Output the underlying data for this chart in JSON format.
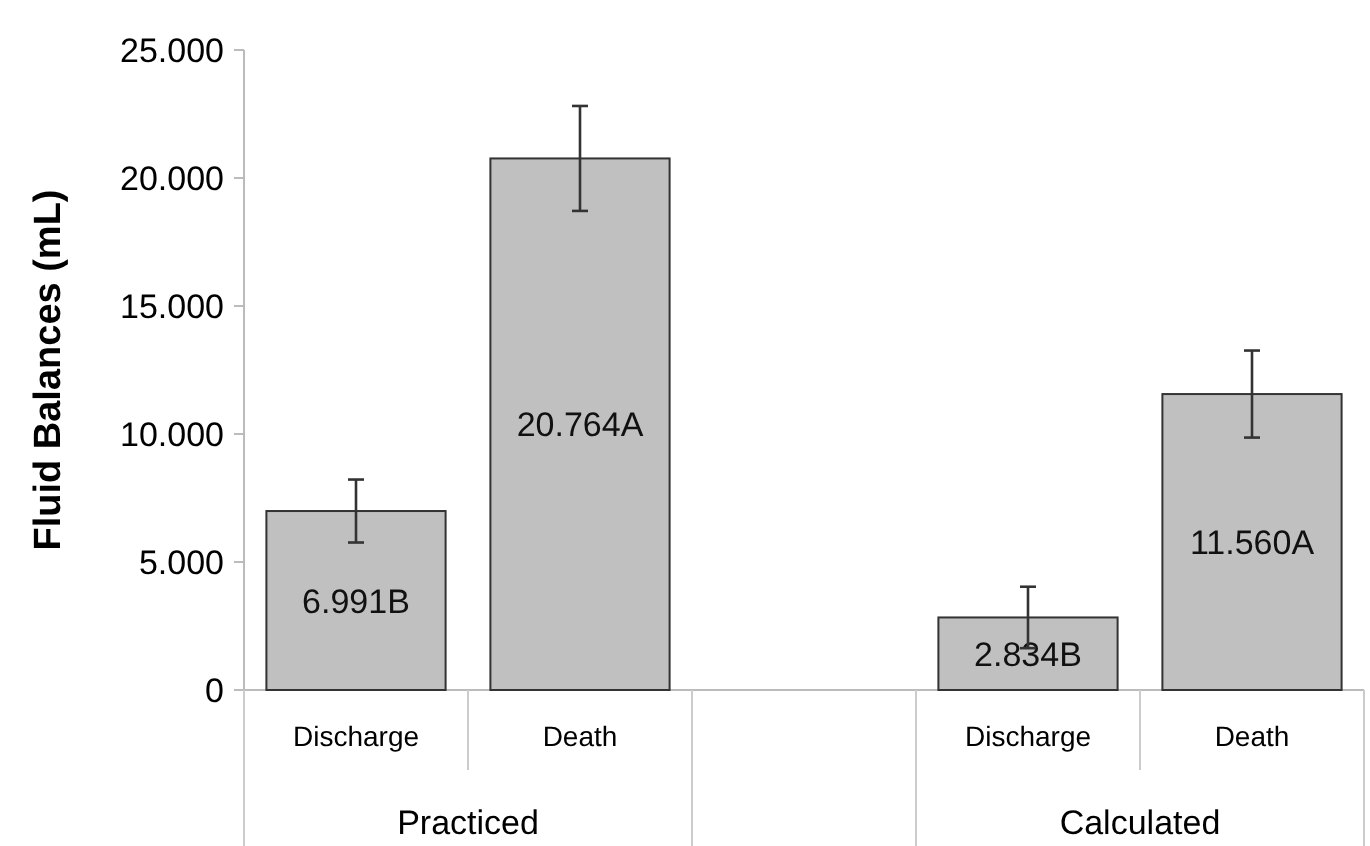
{
  "chart_data": {
    "type": "bar",
    "ylabel": "Fluid Balances (mL)",
    "categories": [
      "Discharge",
      "Death",
      null,
      "Discharge",
      "Death"
    ],
    "values": [
      6991,
      20764,
      null,
      2834,
      11560
    ],
    "errors": [
      1230,
      2050,
      null,
      1200,
      1700
    ],
    "value_labels": [
      "6.991B",
      "20.764A",
      null,
      "2.834B",
      "11.560A"
    ],
    "color": "#c0c0c0",
    "ylim": [
      0,
      25000
    ],
    "yticks": [
      {
        "value": 0,
        "label": "0"
      },
      {
        "value": 5000,
        "label": "5.000"
      },
      {
        "value": 10000,
        "label": "10.000"
      },
      {
        "value": 15000,
        "label": "15.000"
      },
      {
        "value": 20000,
        "label": "20.000"
      },
      {
        "value": 25000,
        "label": "25.000"
      }
    ],
    "annotations": [
      "Practiced",
      "Calculated"
    ]
  }
}
